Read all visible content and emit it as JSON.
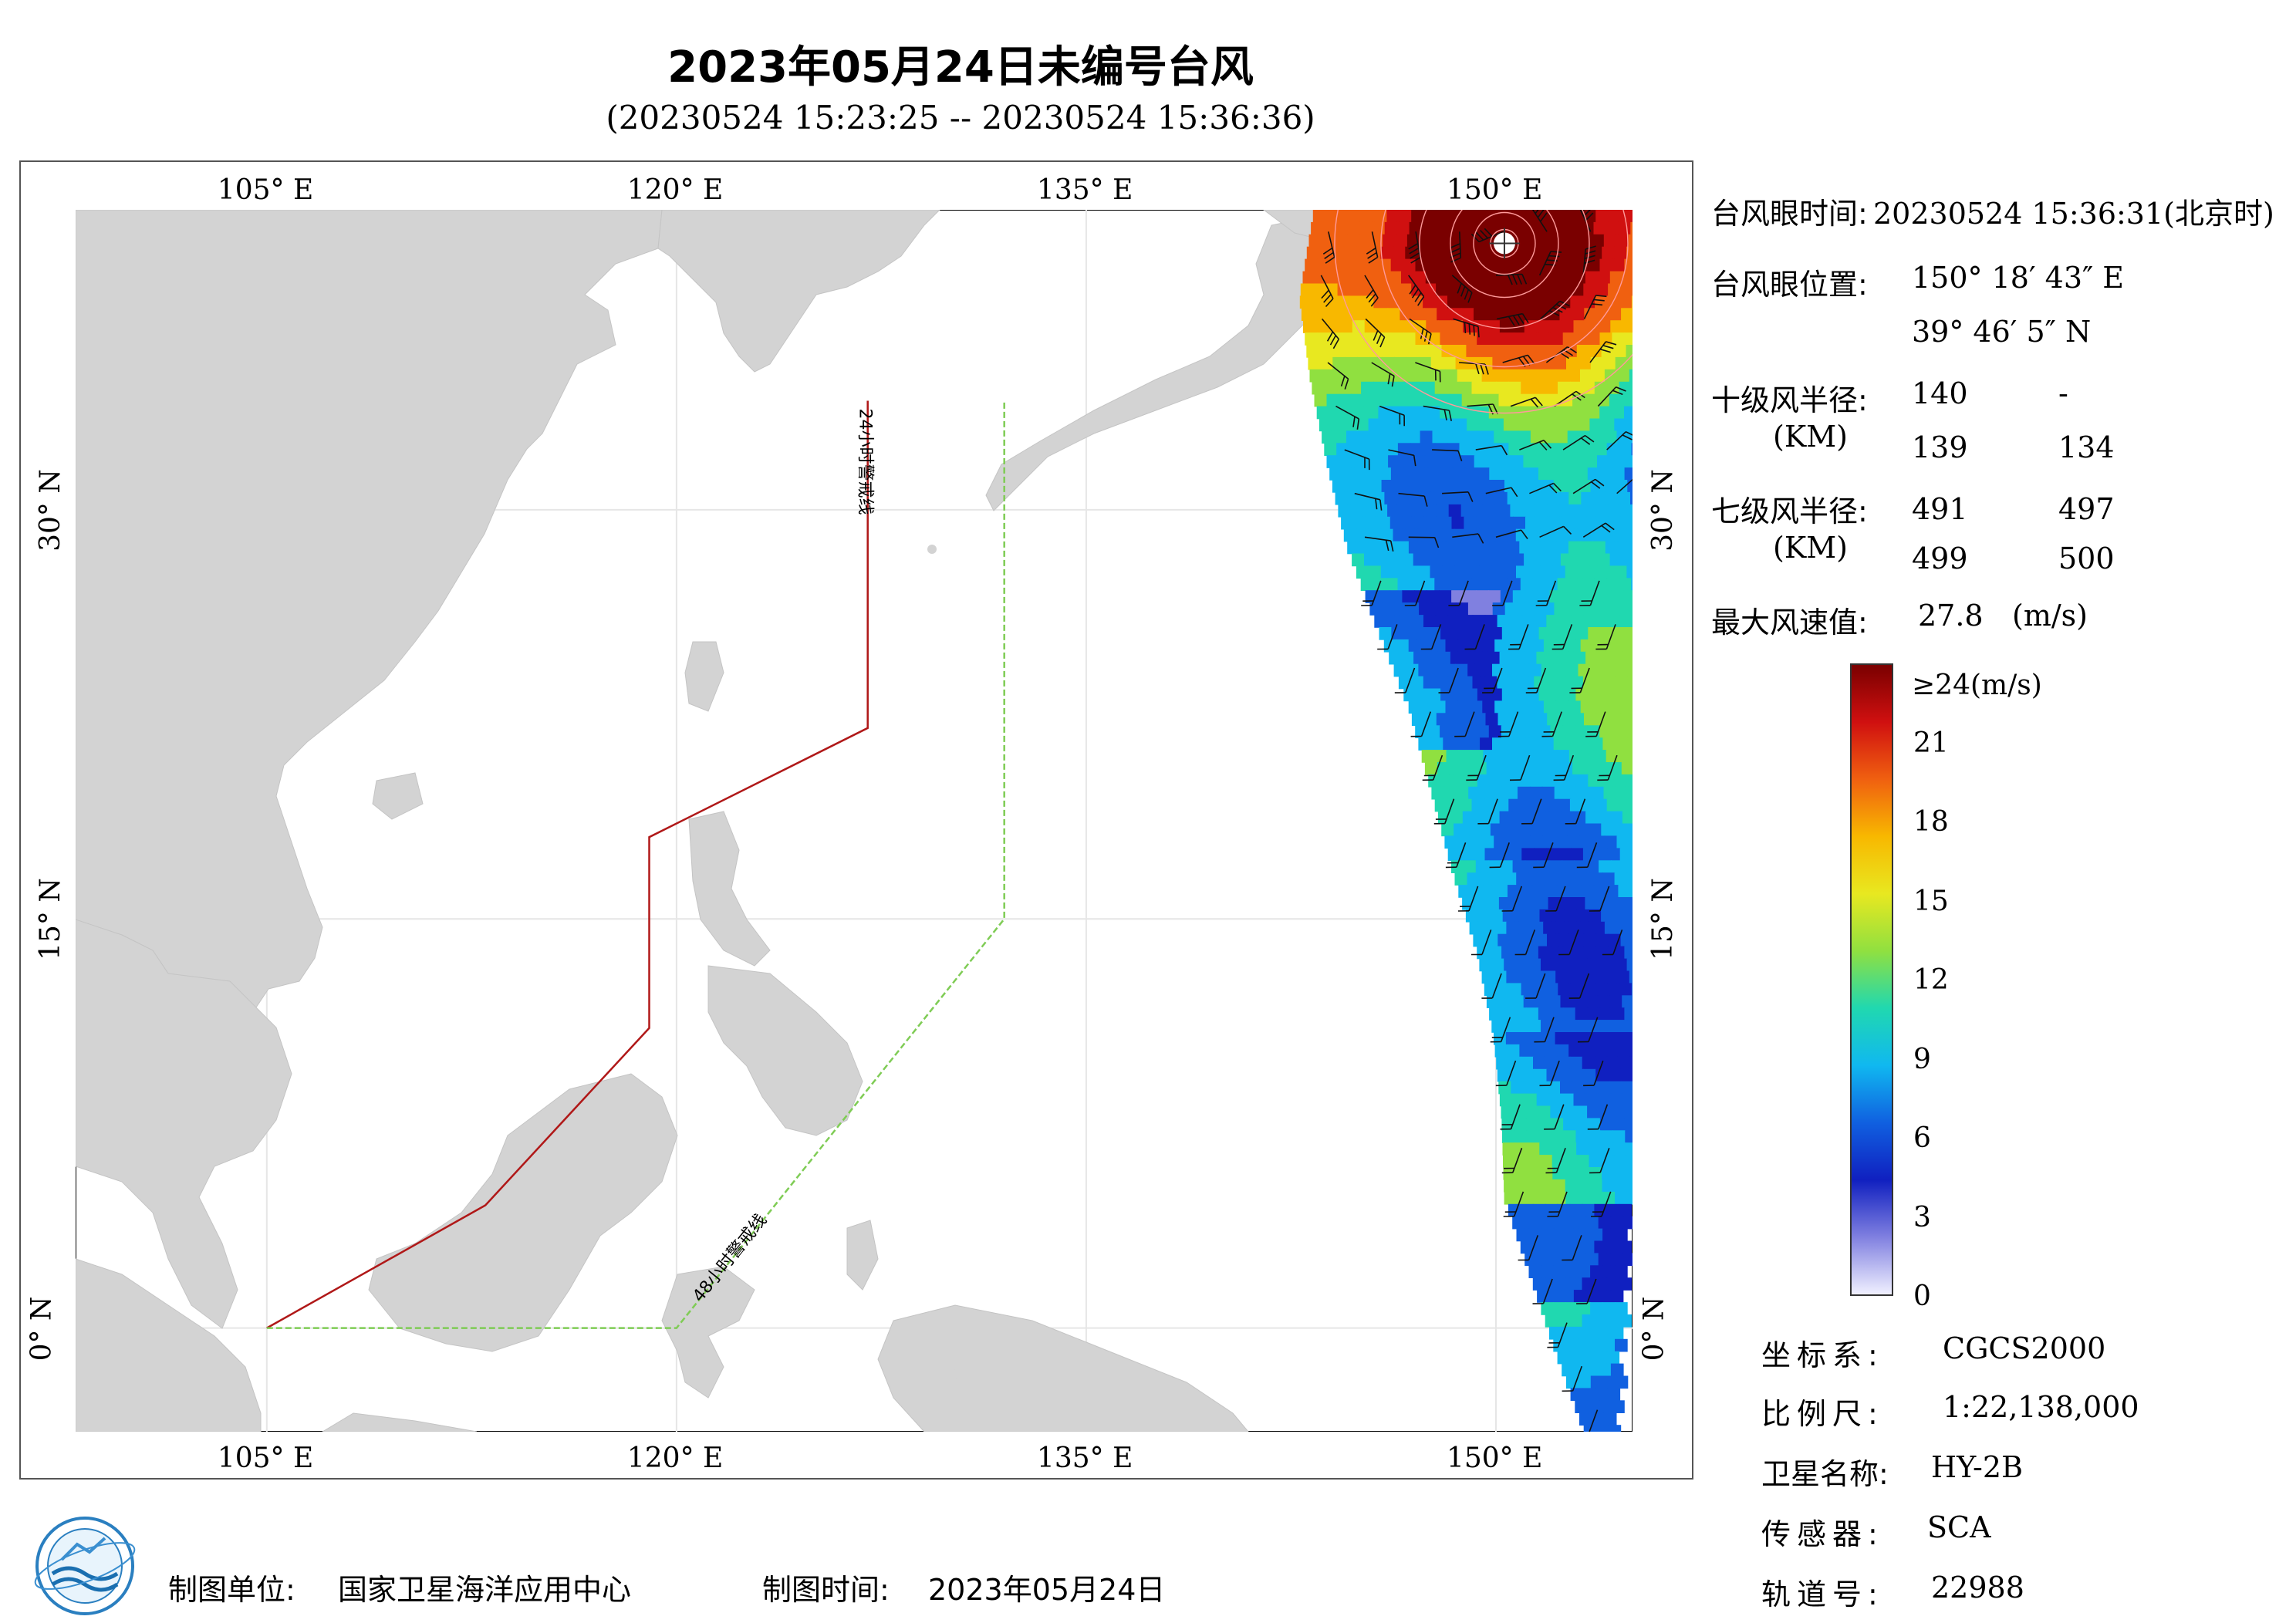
{
  "header": {
    "title": "2023年05月24日未编号台风",
    "subtitle": "(20230524 15:23:25 -- 20230524 15:36:36)"
  },
  "map": {
    "lon_ticks": [
      {
        "value": 105,
        "label": "105° E"
      },
      {
        "value": 120,
        "label": "120° E"
      },
      {
        "value": 135,
        "label": "135° E"
      },
      {
        "value": 150,
        "label": "150° E"
      }
    ],
    "lat_ticks": [
      {
        "value": 30,
        "label": "30° N"
      },
      {
        "value": 15,
        "label": "15° N"
      },
      {
        "value": 0,
        "label": "0° N"
      }
    ],
    "lon_range": [
      98,
      155
    ],
    "lat_range": [
      -3.8,
      41
    ],
    "warning_line_24h": {
      "label": "24小时警戒线",
      "color": "#b01818",
      "points": [
        [
          105,
          0
        ],
        [
          113,
          4.5
        ],
        [
          119,
          11
        ],
        [
          119,
          18
        ],
        [
          127,
          22
        ],
        [
          127,
          34
        ]
      ]
    },
    "warning_line_48h": {
      "label": "48小时警戒线",
      "color": "#7fcc55",
      "points": [
        [
          105,
          0
        ],
        [
          120,
          0
        ],
        [
          132,
          15
        ],
        [
          132,
          34
        ]
      ]
    },
    "typhoon_eye": {
      "lon": 150.31,
      "lat": 39.77
    }
  },
  "info": {
    "eye_time_label": "台风眼时间:",
    "eye_time_value": "20230524 15:36:31(北京时)",
    "eye_pos_label": "台风眼位置:",
    "eye_lon": "150° 18′ 43″ E",
    "eye_lat": "39° 46′ 5″ N",
    "r10_label": "十级风半径:",
    "r7_label": "七级风半径:",
    "unit_km": "(KM)",
    "r10_values": [
      "140",
      "-",
      "139",
      "134"
    ],
    "r7_values": [
      "491",
      "497",
      "499",
      "500"
    ],
    "max_wind_label": "最大风速值:",
    "max_wind_value": "27.8",
    "max_wind_unit": "(m/s)"
  },
  "colorbar": {
    "top_label": "≥24(m/s)",
    "ticks": [
      "21",
      "18",
      "15",
      "12",
      "9",
      "6",
      "3",
      "0"
    ],
    "colors": [
      "#7a0000",
      "#d01010",
      "#f06010",
      "#f8b800",
      "#e8e820",
      "#90e040",
      "#20d8b0",
      "#10b8f0",
      "#1060e0",
      "#1020c0",
      "#8080e0",
      "#f0f0ff"
    ]
  },
  "meta": {
    "crs_label": "坐标系:",
    "crs_value": "CGCS2000",
    "scale_label": "比例尺:",
    "scale_value": "1:22,138,000",
    "satellite_label": "卫星名称:",
    "satellite_value": "HY-2B",
    "sensor_label": "传感器:",
    "sensor_value": "SCA",
    "orbit_label": "轨道号:",
    "orbit_value": "22988"
  },
  "footer": {
    "producer_label": "制图单位:",
    "producer_value": "国家卫星海洋应用中心",
    "date_label": "制图时间:",
    "date_value": "2023年05月24日"
  }
}
